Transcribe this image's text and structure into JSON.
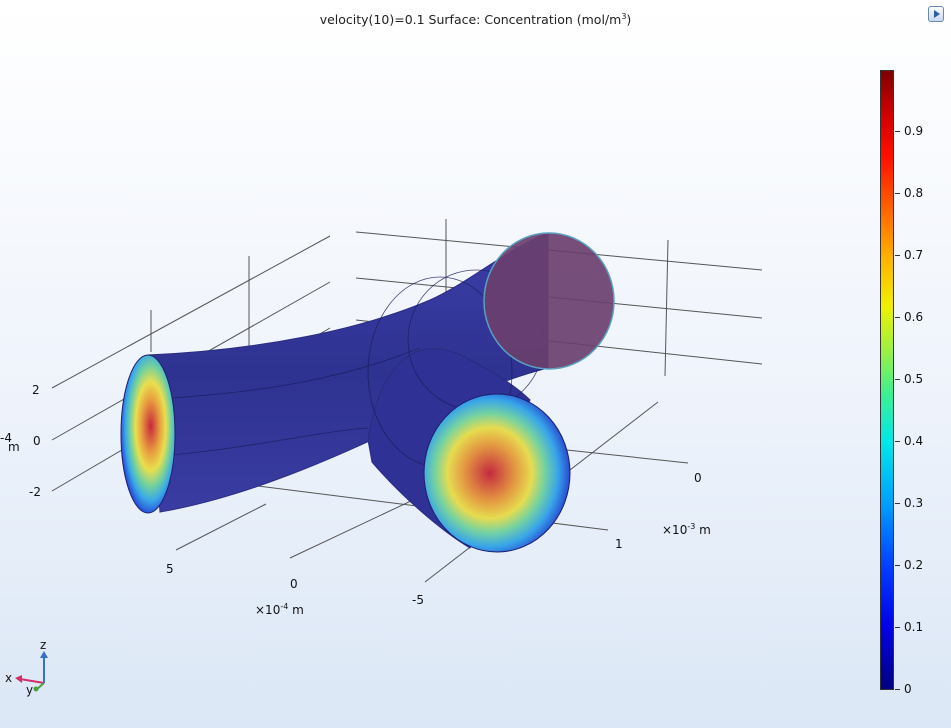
{
  "header": {
    "title_prefix": "velocity(10)=0.1   Surface: Concentration (mol/m",
    "title_exp": "3",
    "title_suffix": ")"
  },
  "toolbar": {
    "export_icon": "export-play-icon"
  },
  "axes": {
    "x_ticks": [
      "5",
      "0",
      "-5"
    ],
    "x_unit_prefix": "×10",
    "x_unit_exp": "-4",
    "x_unit_suffix": " m",
    "y_ticks": [
      "0",
      "1"
    ],
    "y_unit_prefix": "×10",
    "y_unit_exp": "-3",
    "y_unit_suffix": " m",
    "z_ticks": [
      "2",
      "0",
      "-2"
    ],
    "z_unit_exp": "-4",
    "z_unit_suffix": " m"
  },
  "triad": {
    "x": "x",
    "y": "y",
    "z": "z"
  },
  "colorbar": {
    "ticks": [
      "0.9",
      "0.8",
      "0.7",
      "0.6",
      "0.5",
      "0.4",
      "0.3",
      "0.2",
      "0.1",
      "0"
    ],
    "min": 0,
    "max": 1
  },
  "colors": {
    "tube": "#33349a",
    "low": "#00007f",
    "high": "#c0203a",
    "outlet": "#6a3f6e"
  }
}
